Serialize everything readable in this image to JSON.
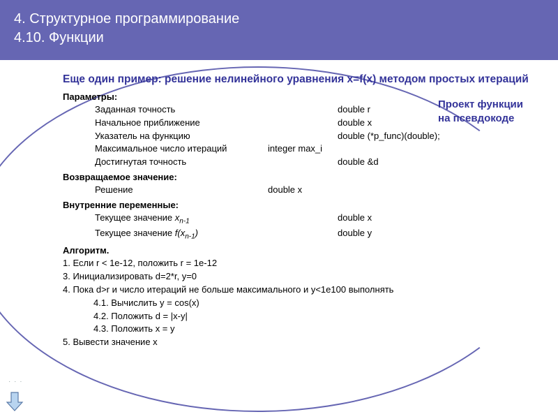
{
  "header": {
    "line1": "4. Структурное программирование",
    "line2": "4.10. Функции"
  },
  "example_title": "Еще один пример: решение нелинейного уравнения x=f(x) методом простых итераций",
  "callout": {
    "line1": "Проект функции",
    "line2": "на псевдокоде"
  },
  "sections": {
    "params_label": "Параметры:",
    "params": [
      {
        "desc": "Заданная точность",
        "col3": "",
        "type": "double   r"
      },
      {
        "desc": "Начальное приближение",
        "col3": "",
        "type": "double   x"
      },
      {
        "desc": "Указатель на функцию",
        "col3": "",
        "type": "double (*p_func)(double);"
      },
      {
        "desc": "Максимальное число итераций",
        "col3": "integer max_i",
        "type": ""
      },
      {
        "desc": "Достигнутая точность",
        "col3": "",
        "type": "double &d"
      }
    ],
    "return_label": "Возвращаемое значение:",
    "return_row": {
      "desc": "Решение",
      "type": "double x"
    },
    "vars_label": "Внутренние переменные:",
    "vars": [
      {
        "desc_pre": "Текущее значение ",
        "desc_it": "x",
        "desc_sub": "n-1",
        "type": "double x"
      },
      {
        "desc_pre": "Текущее значение ",
        "desc_it": "f(x",
        "desc_sub": "n-1",
        "desc_it2": ")",
        "type": "double y"
      }
    ],
    "algo_label": "Алгоритм.",
    "algo": [
      "1. Если r < 1e-12, положить r = 1e-12",
      "3. Инициализировать d=2*r, y=0",
      "4. Пока d>r и число итераций не больше максимального и y<1e100 выполнять"
    ],
    "algo_sub": [
      "4.1. Вычислить y = cos(x)",
      "4.2. Положить d = |x-y|",
      "4.3. Положить x = y"
    ],
    "algo_end": "5. Вывести значение x"
  },
  "colors": {
    "header_bg": "#6666b3",
    "accent": "#333399",
    "arrow_fill": "#b8d4f0",
    "arrow_stroke": "#5a7aa8"
  }
}
